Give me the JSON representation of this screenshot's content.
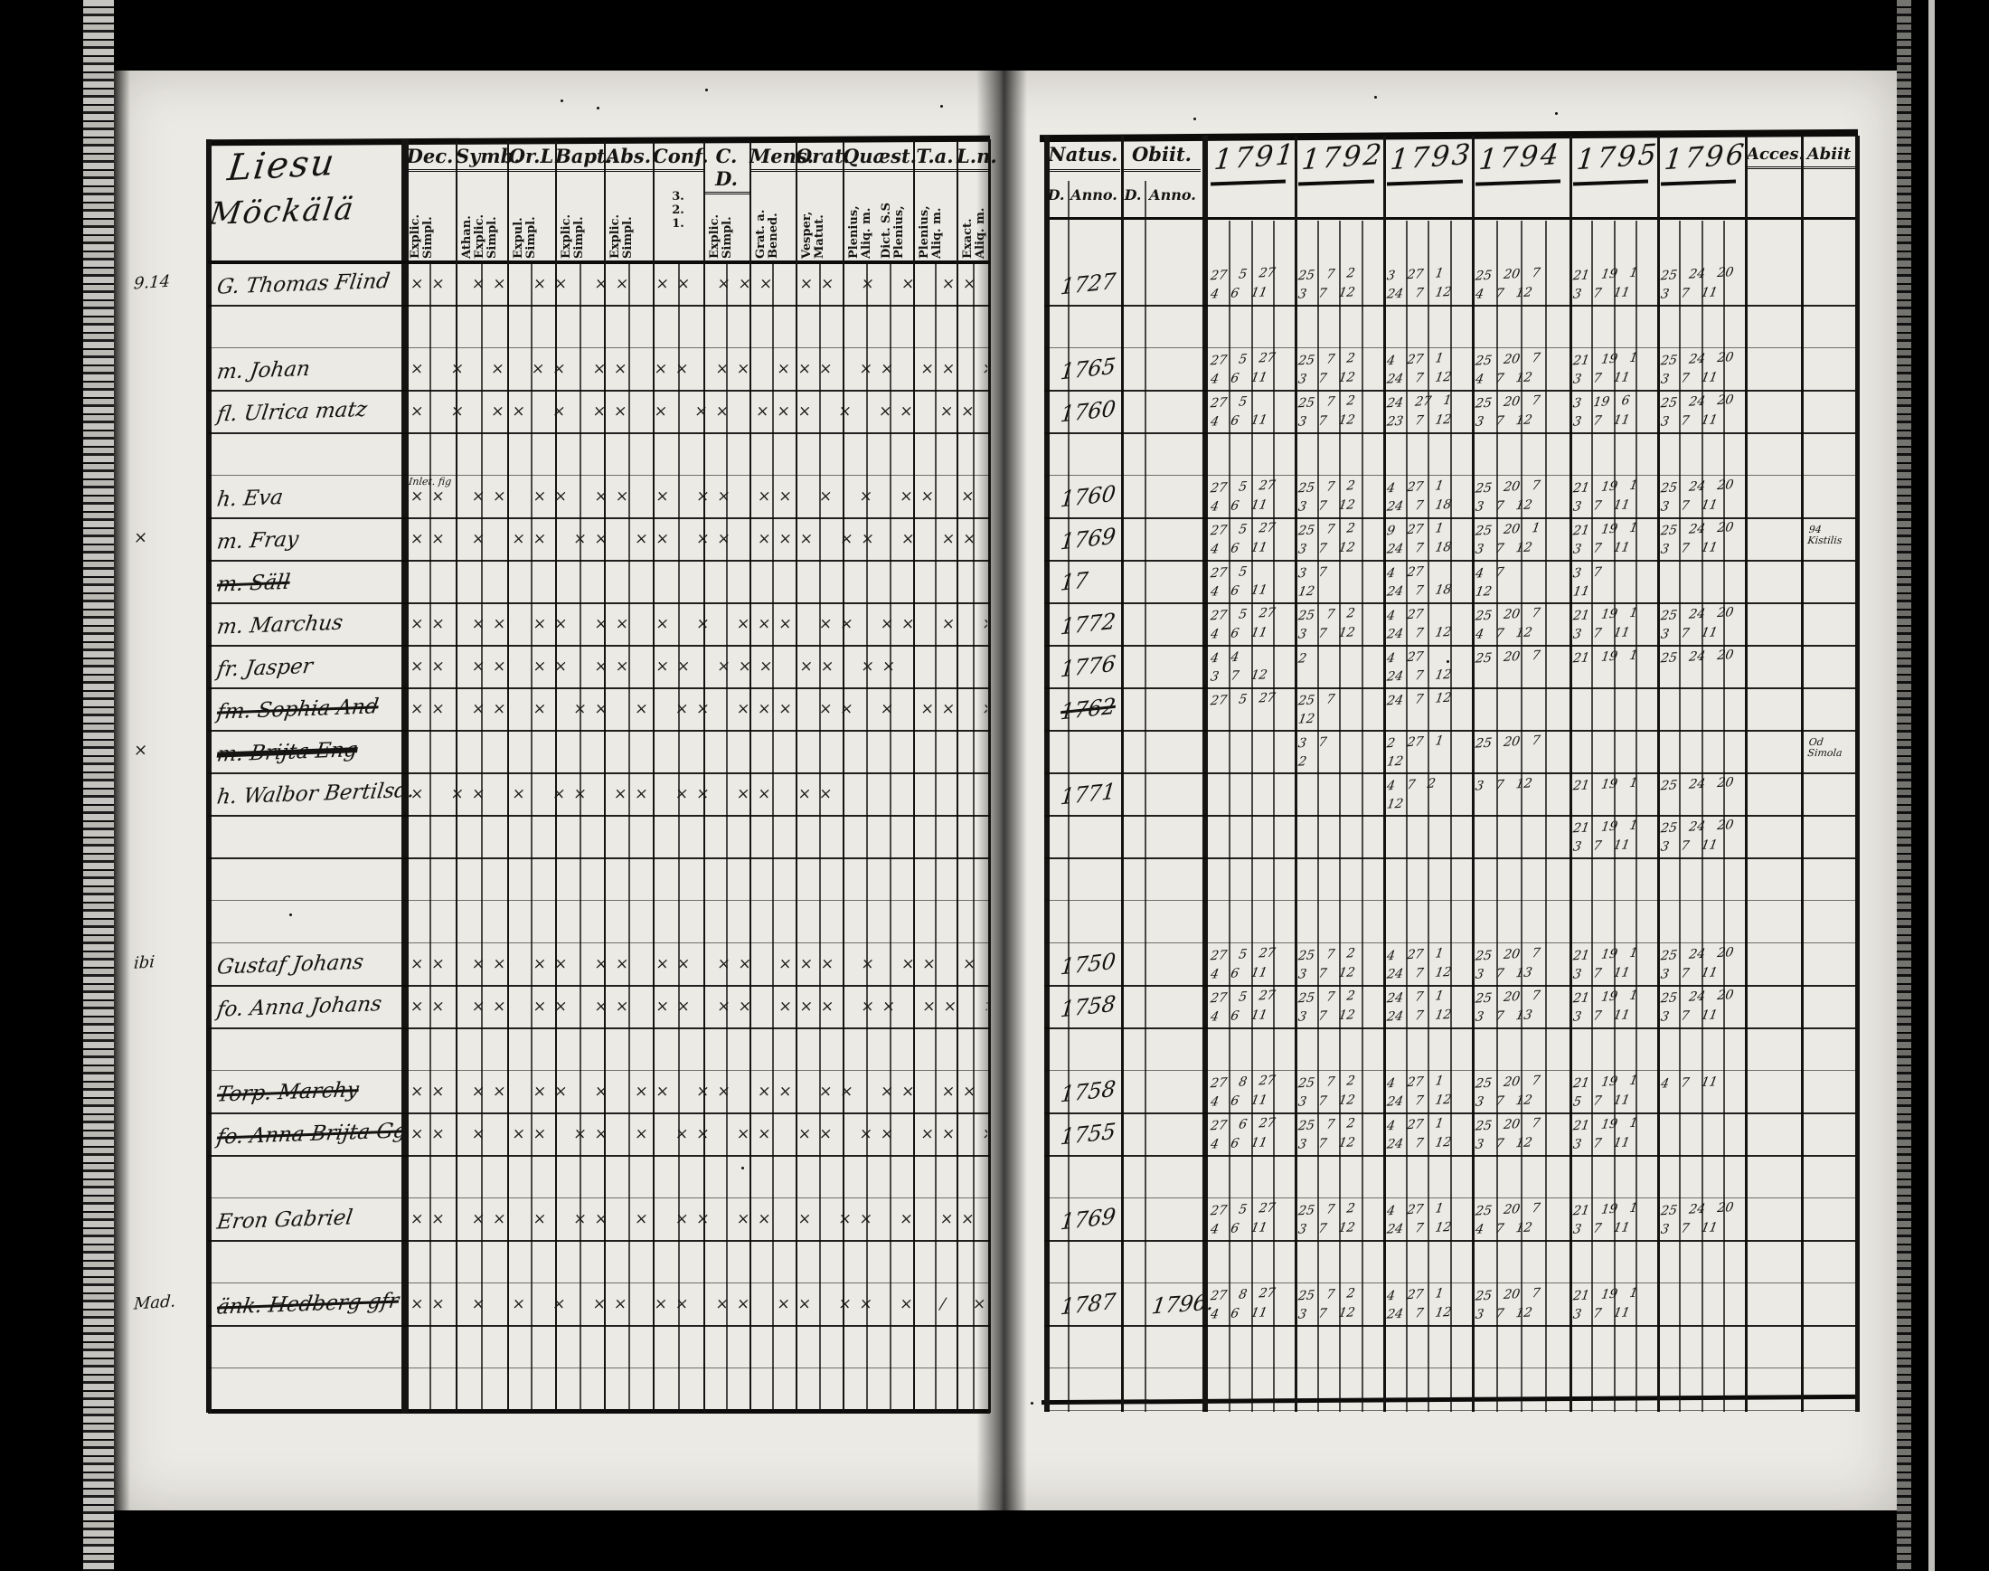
{
  "left_page": {
    "title_line1": "Liesu",
    "title_line2": "Möckälä",
    "columns": [
      {
        "label": "Dec.",
        "sub": "Explic.\nSimpl."
      },
      {
        "label": "Symb.",
        "sub": "Athan.\nExplic.\nSimpl."
      },
      {
        "label": "Or.L",
        "sub": "Expul.\nSimpl."
      },
      {
        "label": "Bapt.",
        "sub": "Explic.\nSimpl."
      },
      {
        "label": "Abs.",
        "sub": "Explic.\nSimpl."
      },
      {
        "label": "Conf.",
        "sub": "3.\n2.\n1.",
        "horiz": true
      },
      {
        "label": "C. D.",
        "sub": "Explic.\nSimpl."
      },
      {
        "label": "Mens.",
        "sub": "Grat. a.\nBened."
      },
      {
        "label": "Orat.",
        "sub": "Vesper,\nMatut."
      },
      {
        "label": "Quæst.",
        "sub": "Plenius,\nAliq. m.",
        "sub2": "Dict. S.S\nPlenius,"
      },
      {
        "label": "T.a.",
        "sub": "Plenius,\nAliq. m."
      },
      {
        "label": "L.n.",
        "sub": "Exact.\nAliq. m."
      }
    ]
  },
  "right_page": {
    "natus_label": "Natus.",
    "obiit_label": "Obiit.",
    "d_label": "D.",
    "anno_label": "Anno.",
    "years": [
      "1791",
      "1792",
      "1793",
      "1794",
      "1795",
      "1796"
    ],
    "acces_label": "Acces.",
    "abiit_label": "Abiit"
  },
  "rows": [
    {
      "type": "person",
      "margin": "9.14",
      "name": "G. Thomas Flind",
      "marks": "×× ××  ×× ××  ××  ××× ×× ×  ×  ××  ×  ×× ××",
      "natus_anno": "1727",
      "years": [
        "27 5 27|4 6 11",
        "25 7 2|3 7 12",
        "3 27 1|24 7 12",
        "25 20 7|4 7 12",
        "21 19 1|3 7 11",
        "25 24 20|3 7 11"
      ]
    },
    {
      "type": "blank"
    },
    {
      "type": "person",
      "name": "m. Johan",
      "marks": "× × ×  ×× ××  ×× ×× ××× ×× ×× ×  ×  ×× ××",
      "natus_anno": "1765",
      "years": [
        "27 5 27|4 6 11",
        "25 7 2|3 7 12",
        "4 27 1|24 7 12",
        "25 20 7|4 7 12",
        "21 19 1|3 7 11",
        "25 24 20|3 7 11"
      ]
    },
    {
      "type": "person",
      "name": "fl. Ulrica matz",
      "marks": "× × ×× × ×× ×  ×× ××× × ×× ×× ×  ××  ××",
      "natus_anno": "1760",
      "years": [
        "27 5|4 6 11",
        "25 7 2|3 7 12",
        "24 27 1|23 7 12",
        "25 20 7|3 7 12",
        "3 19 6|3 7 11",
        "25 24 20|3 7 11"
      ]
    },
    {
      "type": "blank"
    },
    {
      "type": "person",
      "name": "h. Eva",
      "note": "Inlet. fig",
      "marks": "×× ××  ××  ×× ×  ×× ××  × ×  ×× ×  × ×  ××",
      "natus_anno": "1760",
      "years": [
        "27 5 27|4 6 11",
        "25 7 2|3 7 12",
        "4 27 1|24 7 18",
        "25 20 7|3 7 12",
        "21 19 1|3 7 11",
        "25 24 20|3 7 11"
      ]
    },
    {
      "type": "person",
      "margin": "×",
      "name": "m. Fray",
      "marks": "×× ×  ×× ××  ×× ×× ××× ××  ×  ××  ×× ××",
      "natus_anno": "1769",
      "years": [
        "27 5 27|4 6 11",
        "25 7 2|3 7 12",
        "9 27 1|24 7 18",
        "25 20 1|3 7 12",
        "21 19 1|3 7 11",
        "25 24 20|3 7 11"
      ],
      "abiit": "94\nKistilis"
    },
    {
      "type": "person",
      "name": "m. Säll",
      "crossed": true,
      "marks": "",
      "natus_anno": "17",
      "years": [
        "27 5|4 6 11",
        "3 7|12",
        "4 27|24 7 18",
        "4 7|12",
        "3 7|11",
        ""
      ]
    },
    {
      "type": "person",
      "name": "m. Marchus",
      "marks": "×× ×× ××  ××  × × ××× ×× ×× ×  ×  × ××",
      "natus_anno": "1772",
      "years": [
        "27 5 27|4 6 11",
        "25 7 2|3 7 12",
        "4 27|24 7 12",
        "25 20 7|4 7 12",
        "21 19 1|3 7 11",
        "25 24 20|3 7 11"
      ]
    },
    {
      "type": "person",
      "name": "fr. Jasper",
      "marks": "×× ××  ××  ×× ×× ×××  ×× ××",
      "natus_anno": "1776",
      "years": [
        "4 4|3 7 12",
        "|2",
        "4 27|24 7 12",
        "25 20 7|",
        "21 19 1|",
        "25 24 20|"
      ]
    },
    {
      "type": "person",
      "name": "fm. Sophia And",
      "crossed": true,
      "marks": "×× ×× × ×× × ××  ××× ×× × ××  ×  × ××",
      "natus_anno": "1762",
      "natus_crossed": true,
      "years": [
        "27 5 27|",
        "25 7|12",
        "24 7 12|",
        "",
        "",
        ""
      ]
    },
    {
      "type": "person",
      "margin": "×",
      "name": "m. Brijta Eng",
      "crossed_heavy": true,
      "marks": "",
      "years": [
        "",
        "3 7|2",
        "2 27 1|12",
        "25 20 7|",
        "",
        ""
      ],
      "abiit": "Od\nSimola"
    },
    {
      "type": "person",
      "name": "h. Walbor Bertilsd.",
      "marks": "×  ××  ×  ××  ×× ×× ×× ××",
      "natus_anno": "1771",
      "years": [
        "",
        "",
        "4 7 2|12",
        "3 7 12|",
        "21 19 1|",
        "25 24 20|"
      ]
    },
    {
      "type": "person",
      "name": "",
      "marks": "",
      "years": [
        "",
        "",
        "",
        "",
        "21 19 1|3 7 11",
        "25 24 20|3 7 11"
      ]
    },
    {
      "type": "blank"
    },
    {
      "type": "blank"
    },
    {
      "type": "person",
      "margin": "ibi",
      "name": "Gustaf Johans",
      "marks": "×× ××  ×× ××  ×× ××  ××× ×  ××  ×  ×× ××",
      "natus_anno": "1750",
      "years": [
        "27 5 27|4 6 11",
        "25 7 2|3 7 12",
        "4 27 1|24 7 12",
        "25 20 7|3 7 13",
        "21 19 1|3 7 11",
        "25 24 20|3 7 11"
      ]
    },
    {
      "type": "person",
      "name": "fo. Anna Johans",
      "marks": "×× ××  ×× ××  ×× ×× ××× ×× ×× ×  × ××",
      "natus_anno": "1758",
      "years": [
        "27 5 27|4 6 11",
        "25 7 2|3 7 12",
        "24 7 1|24 7 12",
        "25 20 7|3 7 13",
        "21 19 1|3 7 11",
        "25 24 20|3 7 11"
      ]
    },
    {
      "type": "blank"
    },
    {
      "type": "person",
      "name": "Torp. Marchy",
      "crossed": true,
      "marks": "×× ×× ×× ×  ××  ×× ×× ××  ×× ××",
      "natus_anno": "1758",
      "years": [
        "27 8 27|4 6 11",
        "25 7 2|3 7 12",
        "4 27 1|24 7 12",
        "25 20 7|3 7 12",
        "21 19 1|5 7 11",
        "|4 7 11"
      ]
    },
    {
      "type": "person",
      "name": "fo. Anna Brijta Gg",
      "crossed": true,
      "marks": "×× ×  ×× ×× × ××  ×× ××  ××  ×× ××",
      "natus_anno": "1755",
      "years": [
        "27 6 27|4 6 11",
        "25 7 2|3 7 12",
        "4 27 1|24 7 12",
        "25 20 7|3 7 12",
        "21 19 1|3 7 11",
        ""
      ]
    },
    {
      "type": "blank"
    },
    {
      "type": "person",
      "name": "Eron Gabriel",
      "marks": "×× ×× ×  ××  ×  ××  ×× ×  ×× ×  ×× ××",
      "natus_anno": "1769",
      "years": [
        "27 5 27|4 6 11",
        "25 7 2|3 7 12",
        "4 27 1|24 7 12",
        "25 20 7|4 7 12",
        "21 19 1|3 7 11",
        "25 24 20|3 7 11"
      ]
    },
    {
      "type": "blank"
    },
    {
      "type": "person",
      "margin": "Mad.",
      "name": "änk. Hedberg gfr",
      "crossed": true,
      "marks": "××  ×  ×  ×  ××  ××  ×× ××  ×× ×  /  ×× ××",
      "natus_anno": "1787",
      "obiit_anno": "1796.",
      "years": [
        "27 8 27|4 6 11",
        "25 7 2|3 7 12",
        "4 27 1|24 7 12",
        "25 20 7|3 7 12",
        "21 19 1|3 7 11",
        ""
      ]
    },
    {
      "type": "blank"
    },
    {
      "type": "blank"
    }
  ]
}
